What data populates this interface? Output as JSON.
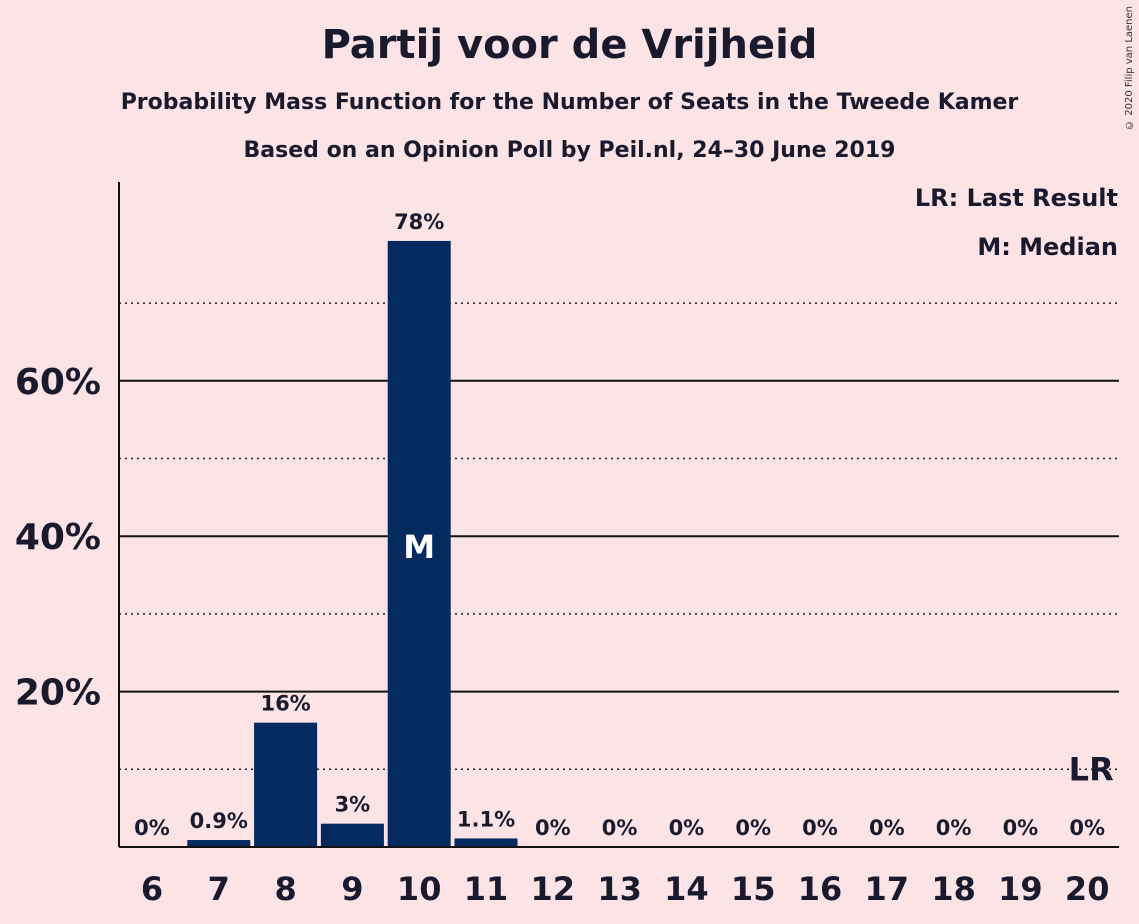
{
  "header": {
    "title": "Partij voor de Vrijheid",
    "subtitle": "Probability Mass Function for the Number of Seats in the Tweede Kamer",
    "subtitle2": "Based on an Opinion Poll by Peil.nl, 24–30 June 2019",
    "copyright": "© 2020 Filip van Laenen"
  },
  "legend": {
    "last_result": "LR: Last Result",
    "median": "M: Median"
  },
  "colors": {
    "bar": "#042a60",
    "background": "#fce4e6",
    "text": "#1a1a2e"
  },
  "chart_data": {
    "type": "bar",
    "categories": [
      "6",
      "7",
      "8",
      "9",
      "10",
      "11",
      "12",
      "13",
      "14",
      "15",
      "16",
      "17",
      "18",
      "19",
      "20"
    ],
    "values": [
      0,
      0.9,
      16,
      3,
      78,
      1.1,
      0,
      0,
      0,
      0,
      0,
      0,
      0,
      0,
      0
    ],
    "data_labels": [
      "0%",
      "0.9%",
      "16%",
      "3%",
      "78%",
      "1.1%",
      "0%",
      "0%",
      "0%",
      "0%",
      "0%",
      "0%",
      "0%",
      "0%",
      "0%"
    ],
    "ylim": [
      0,
      85
    ],
    "yticks": [
      20,
      40,
      60
    ],
    "ytick_labels": [
      "20%",
      "40%",
      "60%"
    ],
    "minor_gridlines": [
      10,
      30,
      50,
      70
    ],
    "median_category": "10",
    "median_marker": "M",
    "last_result_category": "20",
    "last_result_marker": "LR",
    "grid": true,
    "legend_position": "top-right"
  }
}
